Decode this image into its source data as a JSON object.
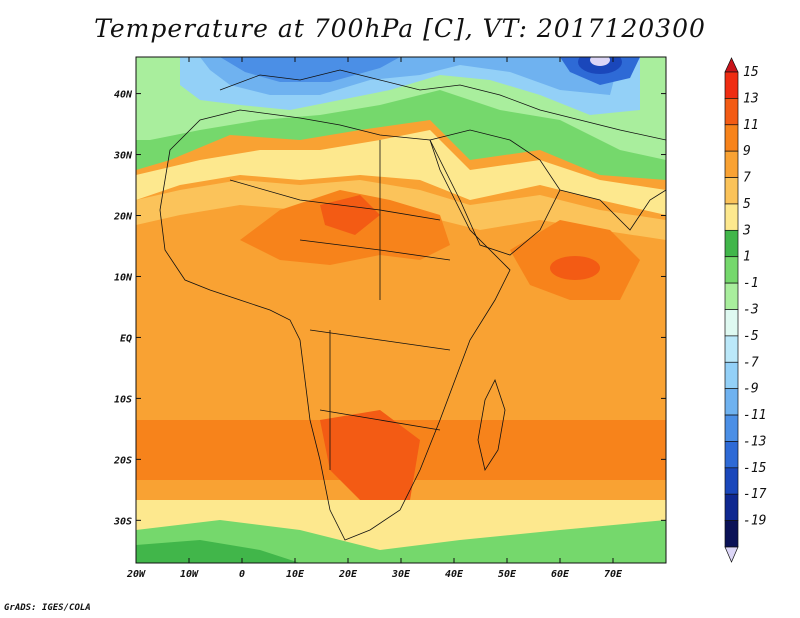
{
  "title": "Temperature at 700hPa [C], VT: 2017120300",
  "map": {
    "lon_range": [
      -20,
      80
    ],
    "lat_range": [
      -37,
      46
    ],
    "x_ticks": [
      "20W",
      "10W",
      "0",
      "10E",
      "20E",
      "30E",
      "40E",
      "50E",
      "60E",
      "70E"
    ],
    "y_ticks": [
      "40N",
      "30N",
      "20N",
      "10N",
      "EQ",
      "10S",
      "20S",
      "30S"
    ]
  },
  "colorbar": {
    "labels": [
      "15",
      "13",
      "11",
      "9",
      "7",
      "5",
      "3",
      "1",
      "-1",
      "-3",
      "-5",
      "-7",
      "-9",
      "-11",
      "-13",
      "-15",
      "-17",
      "-19"
    ],
    "colors": [
      "#ef2d12",
      "#f35b14",
      "#f7831b",
      "#f9a233",
      "#fbc35a",
      "#fde88e",
      "#41b64a",
      "#75d86c",
      "#a9ee9d",
      "#dff9f1",
      "#bbe8f9",
      "#93d0f7",
      "#6fb2f0",
      "#4b8fe6",
      "#2e6ad6",
      "#1a47bb",
      "#0f2890",
      "#0b1257"
    ],
    "top_arrow_color": "#c9141a",
    "bottom_arrow_color": "#dcd6f7"
  },
  "credit": "GrADS: IGES/COLA"
}
